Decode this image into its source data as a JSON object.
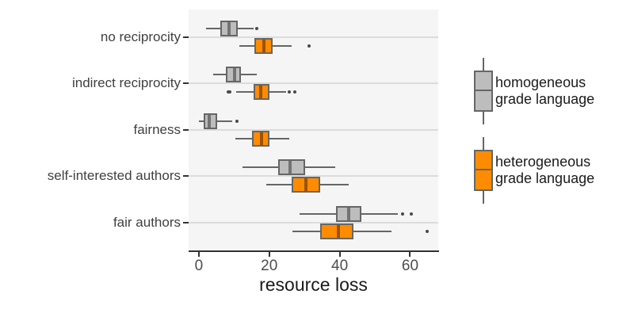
{
  "chart_data": {
    "type": "boxplot",
    "orientation": "horizontal",
    "title": "",
    "xlabel": "resource loss",
    "ylabel": "",
    "categories": [
      "no reciprocity",
      "indirect reciprocity",
      "fairness",
      "self-interested authors",
      "fair authors"
    ],
    "x_ticks": [
      0,
      20,
      40,
      60
    ],
    "xlim": [
      -2.9,
      68
    ],
    "grid": "horizontal-major-only",
    "legend_position": "right",
    "series": [
      {
        "name": "homogeneous grade language",
        "fill": "#bdbdbd",
        "median_color": "#737373",
        "boxes": [
          {
            "whislo": 2.0,
            "q1": 6.0,
            "med": 8.5,
            "q3": 11.0,
            "whishi": 15.5,
            "outliers": [
              16.5
            ]
          },
          {
            "whislo": 4.1,
            "q1": 7.7,
            "med": 10.1,
            "q3": 12.0,
            "whishi": 16.5,
            "outliers": []
          },
          {
            "whislo": 0.0,
            "q1": 1.4,
            "med": 2.9,
            "q3": 5.2,
            "whishi": 9.5,
            "outliers": [
              10.9
            ]
          },
          {
            "whislo": 12.3,
            "q1": 22.6,
            "med": 26.0,
            "q3": 30.1,
            "whishi": 38.7,
            "outliers": []
          },
          {
            "whislo": 28.6,
            "q1": 38.9,
            "med": 42.5,
            "q3": 46.1,
            "whishi": 56.6,
            "outliers": [
              57.9,
              60.4
            ]
          }
        ]
      },
      {
        "name": "heterogeneous grade language",
        "fill": "#ff8c00",
        "median_color": "#9c5200",
        "boxes": [
          {
            "whislo": 11.5,
            "q1": 15.8,
            "med": 18.5,
            "q3": 21.0,
            "whishi": 26.4,
            "outliers": [
              31.3
            ]
          },
          {
            "whislo": 10.5,
            "q1": 15.6,
            "med": 17.5,
            "q3": 20.0,
            "whishi": 24.8,
            "outliers": [
              8.3,
              8.9,
              25.7,
              27.3
            ]
          },
          {
            "whislo": 10.4,
            "q1": 15.2,
            "med": 17.7,
            "q3": 20.0,
            "whishi": 25.8,
            "outliers": []
          },
          {
            "whislo": 19.2,
            "q1": 26.4,
            "med": 30.3,
            "q3": 34.4,
            "whishi": 42.5,
            "outliers": []
          },
          {
            "whislo": 26.6,
            "q1": 34.5,
            "med": 39.6,
            "q3": 44.0,
            "whishi": 54.7,
            "outliers": [
              64.9
            ]
          }
        ]
      }
    ]
  },
  "legend": {
    "items": [
      {
        "label": "homogeneous\ngrade language",
        "color": "#bdbdbd"
      },
      {
        "label": "heterogeneous\ngrade language",
        "color": "#ff8c00"
      }
    ]
  },
  "colors": {
    "panel_background": "#f5f5f5",
    "gridline": "#dcdcdc",
    "box_border": "#666666",
    "whisker": "#666666",
    "axis_line": "#333333",
    "tick_label": "#4d4d4d",
    "category_label": "#404040",
    "gray_fill": "#bdbdbd",
    "orange_fill": "#ff8c00"
  }
}
